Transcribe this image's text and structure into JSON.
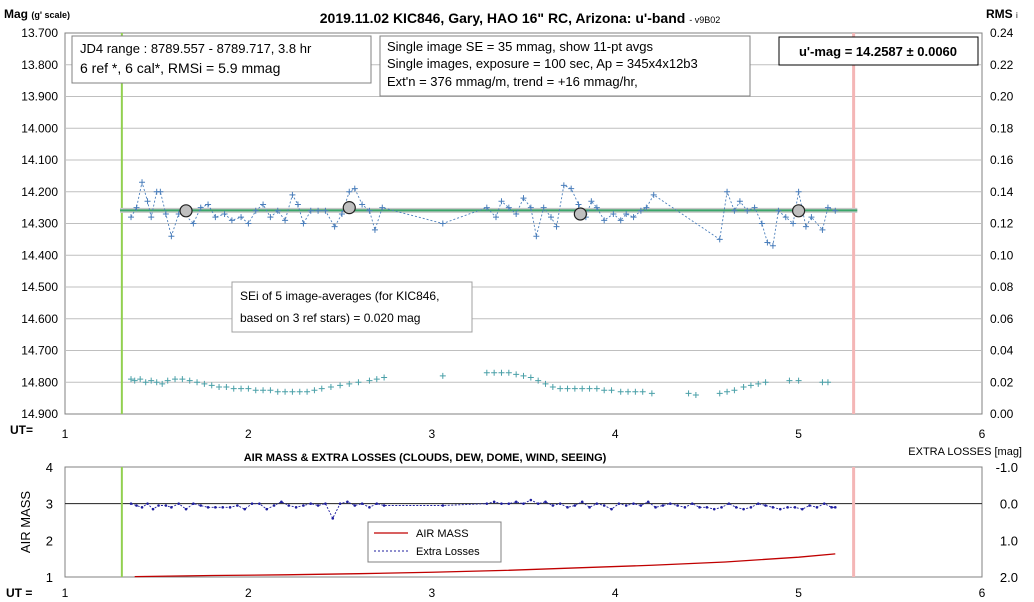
{
  "chart_data": [
    {
      "type": "scatter",
      "title": "2019.11.02 KIC846, Gary, HAO 16\" RC, Arizona: u'-band",
      "version": "- v9B02",
      "ylabel_main": "Mag",
      "ylabel_suffix": "(g' scale)",
      "ylabel_right": "RMS",
      "ylabel_right_suffix": "i",
      "xlabel": "UT=",
      "xlim": [
        1,
        6
      ],
      "ylim": [
        14.9,
        13.7
      ],
      "ylim_right": [
        0.0,
        0.24
      ],
      "x_ticks": [
        "1",
        "2",
        "3",
        "4",
        "5",
        "6"
      ],
      "y_ticks": [
        "13.700",
        "13.800",
        "13.900",
        "14.000",
        "14.100",
        "14.200",
        "14.300",
        "14.400",
        "14.500",
        "14.600",
        "14.700",
        "14.800",
        "14.900"
      ],
      "y_right_ticks": [
        "0.24",
        "0.22",
        "0.20",
        "0.18",
        "0.16",
        "0.14",
        "0.12",
        "0.10",
        "0.08",
        "0.06",
        "0.04",
        "0.02",
        "0.00"
      ],
      "start_line_x": 1.31,
      "end_line_x": 5.3,
      "fit_mag": 14.2587,
      "info_box_1": [
        "JD4 range : 8789.557 - 8789.717,  3.8  hr",
        "6 ref *, 6 cal*, RMSi = 5.9 mmag"
      ],
      "info_box_2": [
        "Single image SE = 35 mmag, show  11-pt avgs",
        "Single images, exposure = 100 sec, Ap = 345x4x12b3",
        "Ext'n = 376 mmag/m, trend =  +16 mmag/hr,"
      ],
      "result_box": "u'-mag = 14.2587 ± 0.0060",
      "note_box": [
        "SEi of 5 image-averages (for KIC846,",
        "based on 3 ref stars) = 0.020 mag"
      ],
      "series": [
        {
          "name": "single images",
          "color": "#4a7ebb",
          "x": [
            1.36,
            1.39,
            1.42,
            1.45,
            1.47,
            1.5,
            1.52,
            1.55,
            1.58,
            1.62,
            1.65,
            1.7,
            1.74,
            1.78,
            1.82,
            1.87,
            1.91,
            1.96,
            2.0,
            2.04,
            2.08,
            2.12,
            2.16,
            2.2,
            2.24,
            2.27,
            2.3,
            2.34,
            2.38,
            2.42,
            2.47,
            2.51,
            2.55,
            2.58,
            2.62,
            2.66,
            2.69,
            2.73,
            3.06,
            3.3,
            3.35,
            3.38,
            3.42,
            3.46,
            3.5,
            3.54,
            3.57,
            3.61,
            3.65,
            3.68,
            3.72,
            3.76,
            3.8,
            3.84,
            3.87,
            3.9,
            3.94,
            3.99,
            4.03,
            4.06,
            4.1,
            4.14,
            4.17,
            4.21,
            4.57,
            4.61,
            4.65,
            4.68,
            4.72,
            4.76,
            4.8,
            4.83,
            4.86,
            4.89,
            4.93,
            4.97,
            5.0,
            5.04,
            5.07,
            5.13,
            5.16,
            5.2
          ],
          "y": [
            14.28,
            14.25,
            14.17,
            14.23,
            14.28,
            14.2,
            14.2,
            14.27,
            14.34,
            14.27,
            14.27,
            14.3,
            14.25,
            14.24,
            14.28,
            14.27,
            14.29,
            14.28,
            14.3,
            14.26,
            14.24,
            14.28,
            14.26,
            14.29,
            14.21,
            14.24,
            14.3,
            14.26,
            14.26,
            14.26,
            14.31,
            14.27,
            14.2,
            14.19,
            14.24,
            14.26,
            14.32,
            14.25,
            14.3,
            14.25,
            14.28,
            14.23,
            14.25,
            14.27,
            14.22,
            14.25,
            14.34,
            14.25,
            14.28,
            14.31,
            14.18,
            14.19,
            14.24,
            14.28,
            14.23,
            14.25,
            14.29,
            14.27,
            14.29,
            14.27,
            14.28,
            14.26,
            14.25,
            14.21,
            14.35,
            14.2,
            14.26,
            14.23,
            14.26,
            14.25,
            14.3,
            14.36,
            14.37,
            14.26,
            14.28,
            14.3,
            14.2,
            14.31,
            14.28,
            14.32,
            14.25,
            14.26
          ]
        },
        {
          "name": "11-pt avgs",
          "color": "#404040",
          "x": [
            1.66,
            2.55,
            3.81,
            5.0
          ],
          "y": [
            14.26,
            14.25,
            14.27,
            14.26
          ]
        },
        {
          "name": "RMSi",
          "color": "#4aa0a8",
          "x": [
            1.36,
            1.38,
            1.41,
            1.44,
            1.47,
            1.5,
            1.53,
            1.56,
            1.6,
            1.64,
            1.68,
            1.72,
            1.76,
            1.8,
            1.84,
            1.88,
            1.92,
            1.96,
            2.0,
            2.04,
            2.08,
            2.12,
            2.16,
            2.2,
            2.24,
            2.28,
            2.32,
            2.36,
            2.4,
            2.45,
            2.5,
            2.55,
            2.6,
            2.66,
            2.7,
            2.74,
            3.06,
            3.3,
            3.34,
            3.38,
            3.42,
            3.46,
            3.5,
            3.54,
            3.58,
            3.62,
            3.66,
            3.7,
            3.74,
            3.78,
            3.82,
            3.86,
            3.9,
            3.94,
            3.98,
            4.03,
            4.07,
            4.11,
            4.15,
            4.2,
            4.4,
            4.44,
            4.57,
            4.61,
            4.65,
            4.7,
            4.74,
            4.78,
            4.82,
            4.95,
            5.0,
            5.13,
            5.16
          ],
          "y": [
            0.022,
            0.021,
            0.022,
            0.02,
            0.021,
            0.02,
            0.019,
            0.021,
            0.022,
            0.022,
            0.021,
            0.02,
            0.019,
            0.018,
            0.017,
            0.017,
            0.016,
            0.016,
            0.016,
            0.015,
            0.015,
            0.015,
            0.014,
            0.014,
            0.014,
            0.014,
            0.014,
            0.015,
            0.016,
            0.017,
            0.018,
            0.019,
            0.02,
            0.021,
            0.022,
            0.023,
            0.024,
            0.026,
            0.026,
            0.026,
            0.026,
            0.025,
            0.024,
            0.023,
            0.021,
            0.019,
            0.017,
            0.016,
            0.016,
            0.016,
            0.016,
            0.016,
            0.016,
            0.015,
            0.015,
            0.014,
            0.014,
            0.014,
            0.014,
            0.013,
            0.013,
            0.012,
            0.013,
            0.014,
            0.015,
            0.017,
            0.018,
            0.019,
            0.02,
            0.021,
            0.021,
            0.02,
            0.02
          ]
        }
      ]
    },
    {
      "type": "line",
      "title": "AIR MASS & EXTRA LOSSES (CLOUDS, DEW, DOME, WIND, SEEING)",
      "ylabel": "AIR MASS",
      "ylabel_right": "EXTRA LOSSES [mag]",
      "xlabel": "UT =",
      "xlim": [
        1,
        6
      ],
      "ylim": [
        1,
        4
      ],
      "ylim_right": [
        2.0,
        -1.0
      ],
      "x_ticks": [
        "1",
        "2",
        "3",
        "4",
        "5",
        "6"
      ],
      "y_ticks": [
        "4",
        "3",
        "2",
        "1"
      ],
      "y_right_ticks": [
        "-1.0",
        "0.0",
        "1.0",
        "2.0"
      ],
      "legend": [
        "AIR MASS",
        "Extra Losses"
      ],
      "series": [
        {
          "name": "AIR MASS",
          "color": "#c00000",
          "x": [
            1.38,
            1.8,
            2.2,
            2.6,
            3.0,
            3.4,
            3.8,
            4.2,
            4.6,
            5.0,
            5.2
          ],
          "y": [
            1.01,
            1.04,
            1.06,
            1.09,
            1.13,
            1.18,
            1.25,
            1.32,
            1.41,
            1.54,
            1.63
          ]
        },
        {
          "name": "Extra Losses",
          "color": "#1f1f9f",
          "x": [
            1.36,
            1.39,
            1.42,
            1.45,
            1.48,
            1.51,
            1.55,
            1.58,
            1.62,
            1.66,
            1.7,
            1.74,
            1.78,
            1.82,
            1.86,
            1.9,
            1.94,
            1.98,
            2.02,
            2.06,
            2.1,
            2.14,
            2.18,
            2.22,
            2.26,
            2.3,
            2.34,
            2.38,
            2.42,
            2.46,
            2.5,
            2.54,
            2.58,
            2.62,
            2.66,
            2.7,
            2.74,
            3.06,
            3.3,
            3.34,
            3.38,
            3.42,
            3.46,
            3.5,
            3.54,
            3.58,
            3.62,
            3.66,
            3.7,
            3.74,
            3.78,
            3.82,
            3.86,
            3.9,
            3.94,
            3.98,
            4.02,
            4.06,
            4.1,
            4.14,
            4.18,
            4.22,
            4.26,
            4.3,
            4.34,
            4.38,
            4.42,
            4.46,
            4.5,
            4.54,
            4.58,
            4.62,
            4.66,
            4.7,
            4.74,
            4.78,
            4.82,
            4.86,
            4.9,
            4.94,
            4.98,
            5.02,
            5.06,
            5.1,
            5.14,
            5.18,
            5.2
          ],
          "y": [
            0.0,
            0.05,
            0.1,
            0.0,
            0.15,
            0.05,
            0.05,
            0.1,
            0.0,
            0.15,
            0.0,
            0.05,
            0.1,
            0.1,
            0.1,
            0.1,
            0.05,
            0.15,
            0.0,
            0.0,
            0.15,
            0.05,
            -0.05,
            0.05,
            0.1,
            0.05,
            0.0,
            0.05,
            0.0,
            0.05,
            0.0,
            -0.05,
            0.05,
            0.0,
            0.1,
            0.0,
            0.05,
            0.05,
            0.0,
            -0.05,
            0.0,
            0.0,
            -0.05,
            0.0,
            -0.1,
            0.0,
            -0.05,
            0.05,
            0.0,
            0.1,
            0.05,
            -0.05,
            0.1,
            0.0,
            0.05,
            0.15,
            0.0,
            0.05,
            0.0,
            0.05,
            -0.05,
            0.1,
            0.05,
            0.0,
            0.05,
            0.1,
            0.0,
            0.1,
            0.1,
            0.15,
            0.1,
            0.0,
            0.1,
            0.15,
            0.1,
            0.0,
            0.05,
            0.1,
            0.15,
            0.1,
            0.1,
            0.15,
            0.05,
            0.1,
            0.0,
            0.1,
            0.1
          ]
        }
      ],
      "outlier_extra_loss": {
        "x": 2.46,
        "y": 0.4
      }
    }
  ]
}
